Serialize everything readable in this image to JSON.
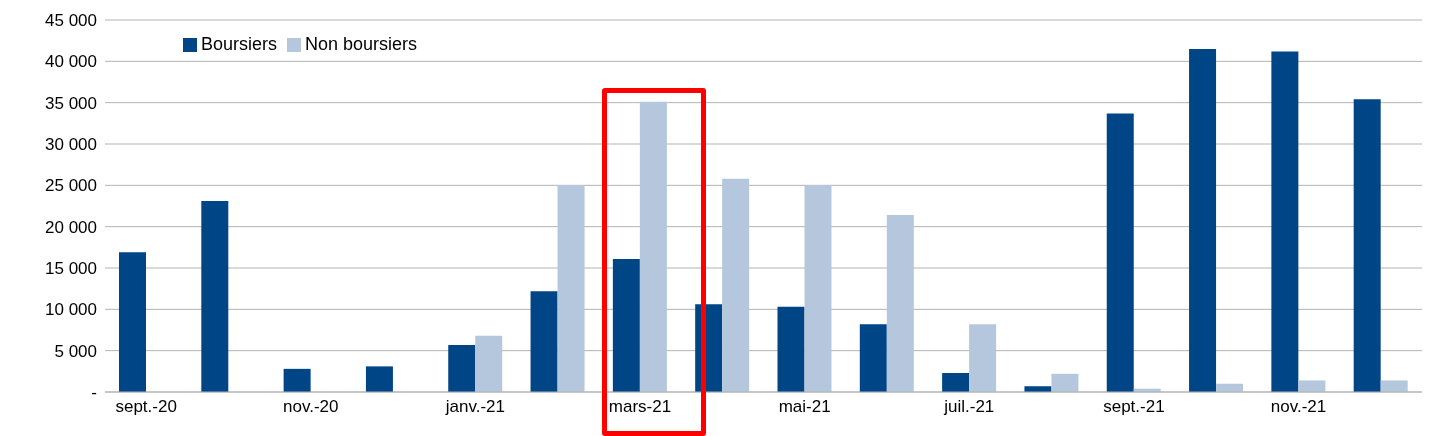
{
  "chart_data": {
    "type": "bar",
    "categories": [
      "sept.-20",
      null,
      "nov.-20",
      null,
      "janv.-21",
      null,
      "mars-21",
      null,
      "mai-21",
      null,
      "juil.-21",
      null,
      "sept.-21",
      null,
      "nov.-21",
      null
    ],
    "series": [
      {
        "name": "Boursiers",
        "color": "#004586",
        "values": [
          16900,
          23100,
          2800,
          3100,
          5700,
          12200,
          16100,
          10600,
          10300,
          8200,
          2300,
          700,
          33700,
          41500,
          41200,
          35400
        ]
      },
      {
        "name": "Non boursiers",
        "color": "#b4c7dc",
        "values": [
          0,
          0,
          0,
          0,
          6800,
          25000,
          35100,
          25800,
          25000,
          21400,
          8200,
          2200,
          400,
          1000,
          1400,
          1400
        ]
      }
    ],
    "ylim": [
      0,
      45000
    ],
    "yticks": [
      {
        "value": 0,
        "label": "-"
      },
      {
        "value": 5000,
        "label": "5 000"
      },
      {
        "value": 10000,
        "label": "10 000"
      },
      {
        "value": 15000,
        "label": "15 000"
      },
      {
        "value": 20000,
        "label": "20 000"
      },
      {
        "value": 25000,
        "label": "25 000"
      },
      {
        "value": 30000,
        "label": "30 000"
      },
      {
        "value": 35000,
        "label": "35 000"
      },
      {
        "value": 40000,
        "label": "40 000"
      },
      {
        "value": 45000,
        "label": "45 000"
      }
    ],
    "grid": "y",
    "legend": "top left"
  }
}
